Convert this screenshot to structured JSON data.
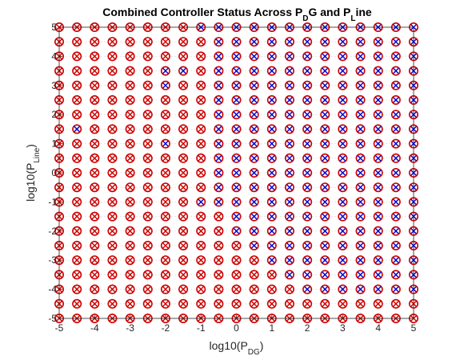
{
  "chart_data": {
    "type": "scatter",
    "title": {
      "parts": [
        {
          "text": "Combined Controller Status Across P"
        },
        {
          "text": "D",
          "sub": true
        },
        {
          "text": "G and P"
        },
        {
          "text": "L",
          "sub": true
        },
        {
          "text": "ine"
        }
      ]
    },
    "xlabel": {
      "parts": [
        {
          "text": "log10(P"
        },
        {
          "text": "DG",
          "sub": true
        },
        {
          "text": ")"
        }
      ]
    },
    "ylabel": {
      "parts": [
        {
          "text": "log10(P"
        },
        {
          "text": "Line",
          "sub": true
        },
        {
          "text": ")"
        }
      ]
    },
    "xlim": [
      -5,
      5
    ],
    "ylim": [
      -5,
      5
    ],
    "xticks": [
      "-5",
      "-4",
      "-3",
      "-2",
      "-1",
      "0",
      "1",
      "2",
      "3",
      "4",
      "5"
    ],
    "yticks": [
      "-5",
      "-4",
      "-3",
      "-2",
      "-1",
      "0",
      "1",
      "2",
      "3",
      "4",
      "5"
    ],
    "grid": {
      "x": [
        -5,
        -4.5,
        -4,
        -3.5,
        -3,
        -2.5,
        -2,
        -1.5,
        -1,
        -0.5,
        0,
        0.5,
        1,
        1.5,
        2,
        2.5,
        3,
        3.5,
        4,
        4.5,
        5
      ],
      "y": [
        -5,
        -4.5,
        -4,
        -3.5,
        -3,
        -2.5,
        -2,
        -1.5,
        -1,
        -0.5,
        0,
        0.5,
        1,
        1.5,
        2,
        2.5,
        3,
        3.5,
        4,
        4.5,
        5
      ]
    },
    "grid_on": true,
    "colors": {
      "background": "#ffffff",
      "axes": "#262626",
      "gridline": "#d9d9d9",
      "circle_marker": "#cc0000",
      "x_marker_red": "#cc0000",
      "x_marker_blue": "#0000cc"
    },
    "marker_legend": {
      "circle": "red circle at every grid point",
      "x_red": "red x inside circle",
      "x_blue": "blue x inside circle"
    },
    "blue_x_points": [
      [
        -1,
        5
      ],
      [
        -0.5,
        5
      ],
      [
        0,
        5
      ],
      [
        0.5,
        5
      ],
      [
        1,
        5
      ],
      [
        1.5,
        5
      ],
      [
        2,
        5
      ],
      [
        2.5,
        5
      ],
      [
        3,
        5
      ],
      [
        3.5,
        5
      ],
      [
        4,
        5
      ],
      [
        4.5,
        5
      ],
      [
        5,
        5
      ],
      [
        -0.5,
        4.5
      ],
      [
        0,
        4.5
      ],
      [
        0.5,
        4.5
      ],
      [
        1,
        4.5
      ],
      [
        1.5,
        4.5
      ],
      [
        2,
        4.5
      ],
      [
        2.5,
        4.5
      ],
      [
        3,
        4.5
      ],
      [
        3.5,
        4.5
      ],
      [
        4,
        4.5
      ],
      [
        4.5,
        4.5
      ],
      [
        5,
        4.5
      ],
      [
        -0.5,
        4
      ],
      [
        0,
        4
      ],
      [
        0.5,
        4
      ],
      [
        1,
        4
      ],
      [
        1.5,
        4
      ],
      [
        2,
        4
      ],
      [
        2.5,
        4
      ],
      [
        3,
        4
      ],
      [
        3.5,
        4
      ],
      [
        4,
        4
      ],
      [
        4.5,
        4
      ],
      [
        5,
        4
      ],
      [
        -2,
        3.5
      ],
      [
        -1.5,
        3.5
      ],
      [
        -0.5,
        3.5
      ],
      [
        0,
        3.5
      ],
      [
        0.5,
        3.5
      ],
      [
        1,
        3.5
      ],
      [
        1.5,
        3.5
      ],
      [
        2,
        3.5
      ],
      [
        2.5,
        3.5
      ],
      [
        3,
        3.5
      ],
      [
        3.5,
        3.5
      ],
      [
        4,
        3.5
      ],
      [
        4.5,
        3.5
      ],
      [
        5,
        3.5
      ],
      [
        -2,
        3
      ],
      [
        -0.5,
        3
      ],
      [
        0,
        3
      ],
      [
        0.5,
        3
      ],
      [
        1,
        3
      ],
      [
        1.5,
        3
      ],
      [
        2,
        3
      ],
      [
        2.5,
        3
      ],
      [
        3,
        3
      ],
      [
        3.5,
        3
      ],
      [
        4,
        3
      ],
      [
        4.5,
        3
      ],
      [
        5,
        3
      ],
      [
        -0.5,
        2.5
      ],
      [
        0,
        2.5
      ],
      [
        0.5,
        2.5
      ],
      [
        1,
        2.5
      ],
      [
        1.5,
        2.5
      ],
      [
        2,
        2.5
      ],
      [
        2.5,
        2.5
      ],
      [
        3,
        2.5
      ],
      [
        3.5,
        2.5
      ],
      [
        4,
        2.5
      ],
      [
        4.5,
        2.5
      ],
      [
        5,
        2.5
      ],
      [
        -0.5,
        2
      ],
      [
        0,
        2
      ],
      [
        0.5,
        2
      ],
      [
        1,
        2
      ],
      [
        1.5,
        2
      ],
      [
        2,
        2
      ],
      [
        2.5,
        2
      ],
      [
        3,
        2
      ],
      [
        3.5,
        2
      ],
      [
        4,
        2
      ],
      [
        4.5,
        2
      ],
      [
        5,
        2
      ],
      [
        -4.5,
        1.5
      ],
      [
        -0.5,
        1.5
      ],
      [
        0,
        1.5
      ],
      [
        0.5,
        1.5
      ],
      [
        1,
        1.5
      ],
      [
        1.5,
        1.5
      ],
      [
        2,
        1.5
      ],
      [
        2.5,
        1.5
      ],
      [
        3,
        1.5
      ],
      [
        3.5,
        1.5
      ],
      [
        4,
        1.5
      ],
      [
        4.5,
        1.5
      ],
      [
        5,
        1.5
      ],
      [
        -2,
        1
      ],
      [
        -0.5,
        1
      ],
      [
        0,
        1
      ],
      [
        0.5,
        1
      ],
      [
        1,
        1
      ],
      [
        1.5,
        1
      ],
      [
        2,
        1
      ],
      [
        2.5,
        1
      ],
      [
        3,
        1
      ],
      [
        3.5,
        1
      ],
      [
        4,
        1
      ],
      [
        4.5,
        1
      ],
      [
        5,
        1
      ],
      [
        -0.5,
        0.5
      ],
      [
        0,
        0.5
      ],
      [
        0.5,
        0.5
      ],
      [
        1,
        0.5
      ],
      [
        1.5,
        0.5
      ],
      [
        2,
        0.5
      ],
      [
        2.5,
        0.5
      ],
      [
        3,
        0.5
      ],
      [
        3.5,
        0.5
      ],
      [
        4,
        0.5
      ],
      [
        4.5,
        0.5
      ],
      [
        5,
        0.5
      ],
      [
        -0.5,
        0
      ],
      [
        0,
        0
      ],
      [
        0.5,
        0
      ],
      [
        1,
        0
      ],
      [
        1.5,
        0
      ],
      [
        2,
        0
      ],
      [
        2.5,
        0
      ],
      [
        3,
        0
      ],
      [
        3.5,
        0
      ],
      [
        4,
        0
      ],
      [
        4.5,
        0
      ],
      [
        5,
        0
      ],
      [
        -0.5,
        -0.5
      ],
      [
        0,
        -0.5
      ],
      [
        0.5,
        -0.5
      ],
      [
        1,
        -0.5
      ],
      [
        1.5,
        -0.5
      ],
      [
        2,
        -0.5
      ],
      [
        2.5,
        -0.5
      ],
      [
        3,
        -0.5
      ],
      [
        3.5,
        -0.5
      ],
      [
        4,
        -0.5
      ],
      [
        4.5,
        -0.5
      ],
      [
        5,
        -0.5
      ],
      [
        -1,
        -1
      ],
      [
        -0.5,
        -1
      ],
      [
        0,
        -1
      ],
      [
        0.5,
        -1
      ],
      [
        1,
        -1
      ],
      [
        1.5,
        -1
      ],
      [
        2,
        -1
      ],
      [
        2.5,
        -1
      ],
      [
        3,
        -1
      ],
      [
        3.5,
        -1
      ],
      [
        4,
        -1
      ],
      [
        4.5,
        -1
      ],
      [
        5,
        -1
      ],
      [
        0,
        -1.5
      ],
      [
        0.5,
        -1.5
      ],
      [
        1,
        -1.5
      ],
      [
        1.5,
        -1.5
      ],
      [
        2,
        -1.5
      ],
      [
        2.5,
        -1.5
      ],
      [
        3,
        -1.5
      ],
      [
        3.5,
        -1.5
      ],
      [
        4,
        -1.5
      ],
      [
        4.5,
        -1.5
      ],
      [
        5,
        -1.5
      ],
      [
        0,
        -2
      ],
      [
        0.5,
        -2
      ],
      [
        1,
        -2
      ],
      [
        1.5,
        -2
      ],
      [
        2,
        -2
      ],
      [
        2.5,
        -2
      ],
      [
        3,
        -2
      ],
      [
        3.5,
        -2
      ],
      [
        4,
        -2
      ],
      [
        4.5,
        -2
      ],
      [
        5,
        -2
      ],
      [
        0.5,
        -2.5
      ],
      [
        1,
        -2.5
      ],
      [
        1.5,
        -2.5
      ],
      [
        2,
        -2.5
      ],
      [
        2.5,
        -2.5
      ],
      [
        3,
        -2.5
      ],
      [
        3.5,
        -2.5
      ],
      [
        4,
        -2.5
      ],
      [
        4.5,
        -2.5
      ],
      [
        5,
        -2.5
      ],
      [
        1,
        -3
      ],
      [
        1.5,
        -3
      ],
      [
        2,
        -3
      ],
      [
        2.5,
        -3
      ],
      [
        3,
        -3
      ],
      [
        3.5,
        -3
      ],
      [
        4,
        -3
      ],
      [
        4.5,
        -3
      ],
      [
        5,
        -3
      ],
      [
        1.5,
        -3.5
      ],
      [
        2,
        -3.5
      ],
      [
        2.5,
        -3.5
      ],
      [
        3,
        -3.5
      ],
      [
        3.5,
        -3.5
      ],
      [
        4,
        -3.5
      ],
      [
        4.5,
        -3.5
      ],
      [
        5,
        -3.5
      ],
      [
        2,
        -4
      ],
      [
        2.5,
        -4
      ],
      [
        3,
        -4
      ],
      [
        3.5,
        -4
      ],
      [
        4,
        -4
      ],
      [
        4.5,
        -4
      ],
      [
        5,
        -4
      ]
    ]
  }
}
